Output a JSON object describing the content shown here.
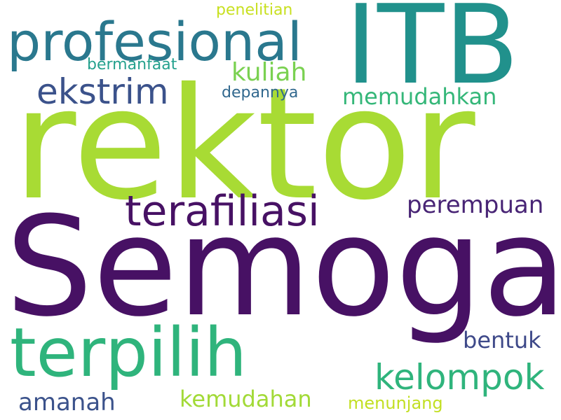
{
  "words": [
    {
      "key": "rektor",
      "text": "rektor",
      "color": "#a8db34"
    },
    {
      "key": "semoga",
      "text": "Semoga",
      "color": "#471164"
    },
    {
      "key": "itb",
      "text": "ITB",
      "color": "#21918c"
    },
    {
      "key": "profesional",
      "text": "profesional",
      "color": "#2a788e"
    },
    {
      "key": "terpilih",
      "text": "terpilih",
      "color": "#2fb47c"
    },
    {
      "key": "terafiliasi",
      "text": "terafiliasi",
      "color": "#471164"
    },
    {
      "key": "ekstrim",
      "text": "ekstrim",
      "color": "#3b528b"
    },
    {
      "key": "kelompok",
      "text": "kelompok",
      "color": "#2fb47c"
    },
    {
      "key": "perempuan",
      "text": "perempuan",
      "color": "#482475"
    },
    {
      "key": "kuliah",
      "text": "kuliah",
      "color": "#7ad151"
    },
    {
      "key": "memudahkan",
      "text": "memudahkan",
      "color": "#35b779"
    },
    {
      "key": "bentuk",
      "text": "bentuk",
      "color": "#3e4989"
    },
    {
      "key": "amanah",
      "text": "amanah",
      "color": "#3b528b"
    },
    {
      "key": "kemudahan",
      "text": "kemudahan",
      "color": "#a2da37"
    },
    {
      "key": "menunjang",
      "text": "menunjang",
      "color": "#c2df23"
    },
    {
      "key": "penelitian",
      "text": "penelitian",
      "color": "#c8e020"
    },
    {
      "key": "bermanfaat",
      "text": "bermanfaat",
      "color": "#25a18e"
    },
    {
      "key": "depannya",
      "text": "depannya",
      "color": "#31688e"
    }
  ]
}
